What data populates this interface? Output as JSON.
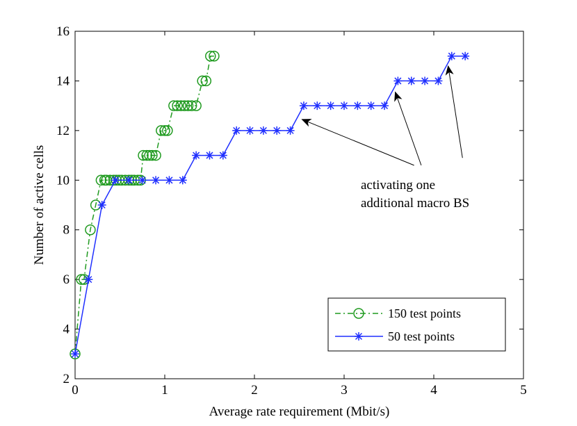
{
  "chart_data": {
    "type": "line",
    "title": "",
    "xlabel": "Average rate requirement (Mbit/s)",
    "ylabel": "Number of active cells",
    "xlim": [
      0,
      5
    ],
    "ylim": [
      2,
      16
    ],
    "x_ticks": [
      "0",
      "1",
      "2",
      "3",
      "4",
      "5"
    ],
    "y_ticks": [
      "2",
      "4",
      "6",
      "8",
      "10",
      "12",
      "14",
      "16"
    ],
    "grid": false,
    "legend_position": "bottom-right",
    "series": [
      {
        "name": "150 test points",
        "color": "#1f9a1f",
        "marker": "circle",
        "line_style": "dash-dot",
        "x": [
          0.0,
          0.07,
          0.1,
          0.17,
          0.23,
          0.29,
          0.33,
          0.35,
          0.39,
          0.43,
          0.46,
          0.49,
          0.52,
          0.56,
          0.6,
          0.63,
          0.66,
          0.7,
          0.73,
          0.76,
          0.8,
          0.83,
          0.86,
          0.9,
          0.96,
          1.0,
          1.03,
          1.1,
          1.14,
          1.18,
          1.22,
          1.26,
          1.3,
          1.35,
          1.42,
          1.46,
          1.51,
          1.55
        ],
        "y": [
          3,
          6,
          6,
          8,
          9,
          10,
          10,
          10,
          10,
          10,
          10,
          10,
          10,
          10,
          10,
          10,
          10,
          10,
          10,
          11,
          11,
          11,
          11,
          11,
          12,
          12,
          12,
          13,
          13,
          13,
          13,
          13,
          13,
          13,
          14,
          14,
          15,
          15
        ]
      },
      {
        "name": "50 test points",
        "color": "#1f2fff",
        "marker": "asterisk",
        "line_style": "solid",
        "x": [
          0.0,
          0.15,
          0.3,
          0.45,
          0.6,
          0.75,
          0.9,
          1.05,
          1.2,
          1.35,
          1.5,
          1.65,
          1.8,
          1.95,
          2.1,
          2.25,
          2.4,
          2.55,
          2.7,
          2.85,
          3.0,
          3.15,
          3.3,
          3.45,
          3.6,
          3.75,
          3.9,
          4.05,
          4.2,
          4.35
        ],
        "y": [
          3,
          6,
          9,
          10,
          10,
          10,
          10,
          10,
          10,
          11,
          11,
          11,
          12,
          12,
          12,
          12,
          12,
          13,
          13,
          13,
          13,
          13,
          13,
          13,
          14,
          14,
          14,
          14,
          15,
          15
        ]
      }
    ],
    "annotation": {
      "lines": [
        "activating one",
        "additional macro BS"
      ],
      "arrow_targets": [
        {
          "x": 2.53,
          "y": 12.45
        },
        {
          "x": 3.57,
          "y": 13.55
        },
        {
          "x": 4.16,
          "y": 14.6
        }
      ],
      "arrow_origins": [
        {
          "x": 3.78,
          "y": 10.6
        },
        {
          "x": 3.86,
          "y": 10.6
        },
        {
          "x": 4.32,
          "y": 10.9
        }
      ]
    }
  }
}
